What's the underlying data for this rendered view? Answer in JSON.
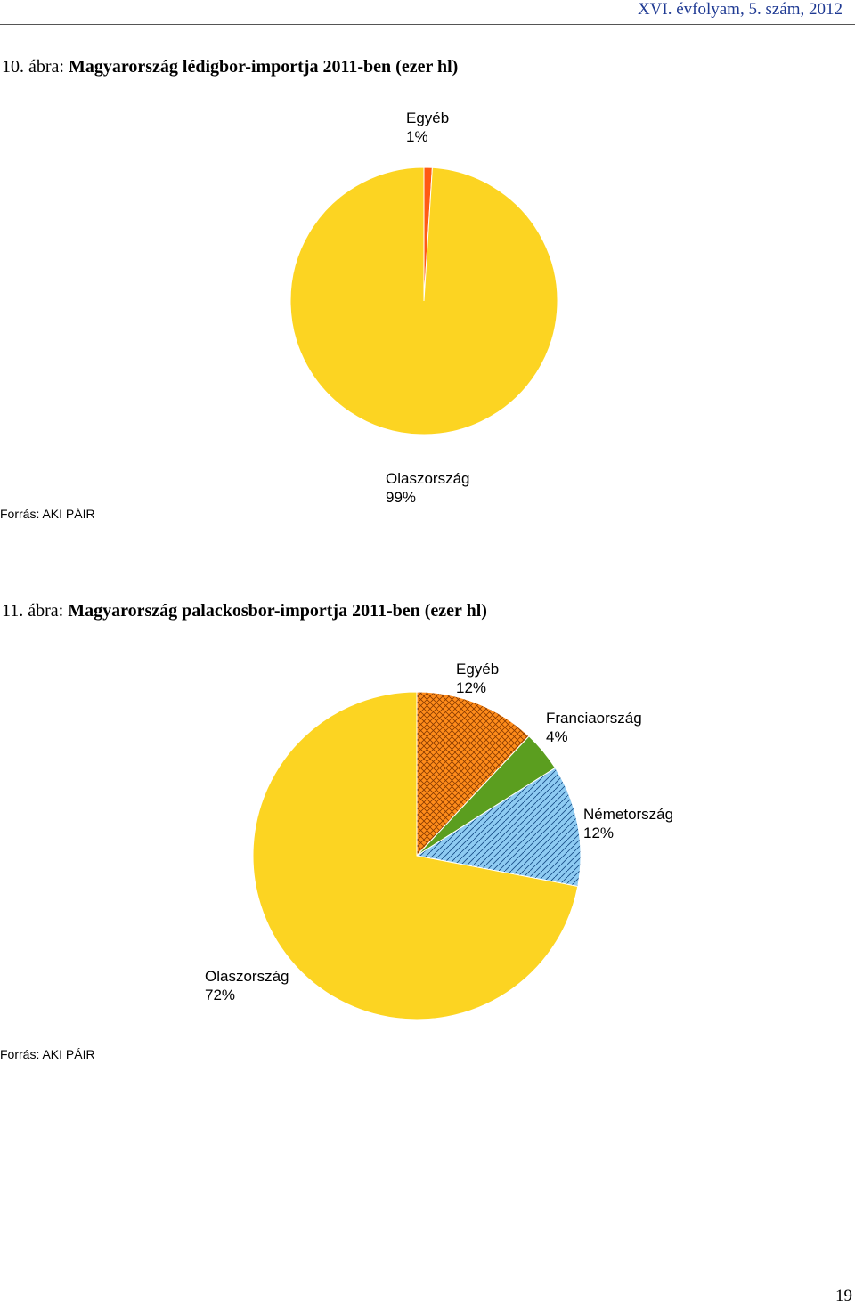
{
  "header": {
    "text": "XVI. évfolyam, 5. szám, 2012"
  },
  "page_number": "19",
  "chart_data": [
    {
      "type": "pie",
      "figure_number": "10. ábra:",
      "title": "Magyarország lédigbor-importja 2011-ben (ezer hl)",
      "source": "Forrás: AKI PÁIR",
      "slices": [
        {
          "label": "Egyéb",
          "pct_label": "1%",
          "value": 1,
          "color": "#ff5a13",
          "pattern": "none"
        },
        {
          "label": "Olaszország",
          "pct_label": "99%",
          "value": 99,
          "color": "#fcd422",
          "pattern": "none"
        }
      ]
    },
    {
      "type": "pie",
      "figure_number": "11. ábra:",
      "title": "Magyarország palackosbor-importja 2011-ben (ezer hl)",
      "source": "Forrás: AKI PÁIR",
      "slices": [
        {
          "label": "Egyéb",
          "pct_label": "12%",
          "value": 12,
          "color": "#ff8c1a",
          "pattern": "crosshatch"
        },
        {
          "label": "Franciaország",
          "pct_label": "4%",
          "value": 4,
          "color": "#5b9e1f",
          "pattern": "none"
        },
        {
          "label": "Németország",
          "pct_label": "12%",
          "value": 12,
          "color": "#8ecbf2",
          "pattern": "diagonal"
        },
        {
          "label": "Olaszország",
          "pct_label": "72%",
          "value": 72,
          "color": "#fcd422",
          "pattern": "none"
        }
      ]
    }
  ]
}
